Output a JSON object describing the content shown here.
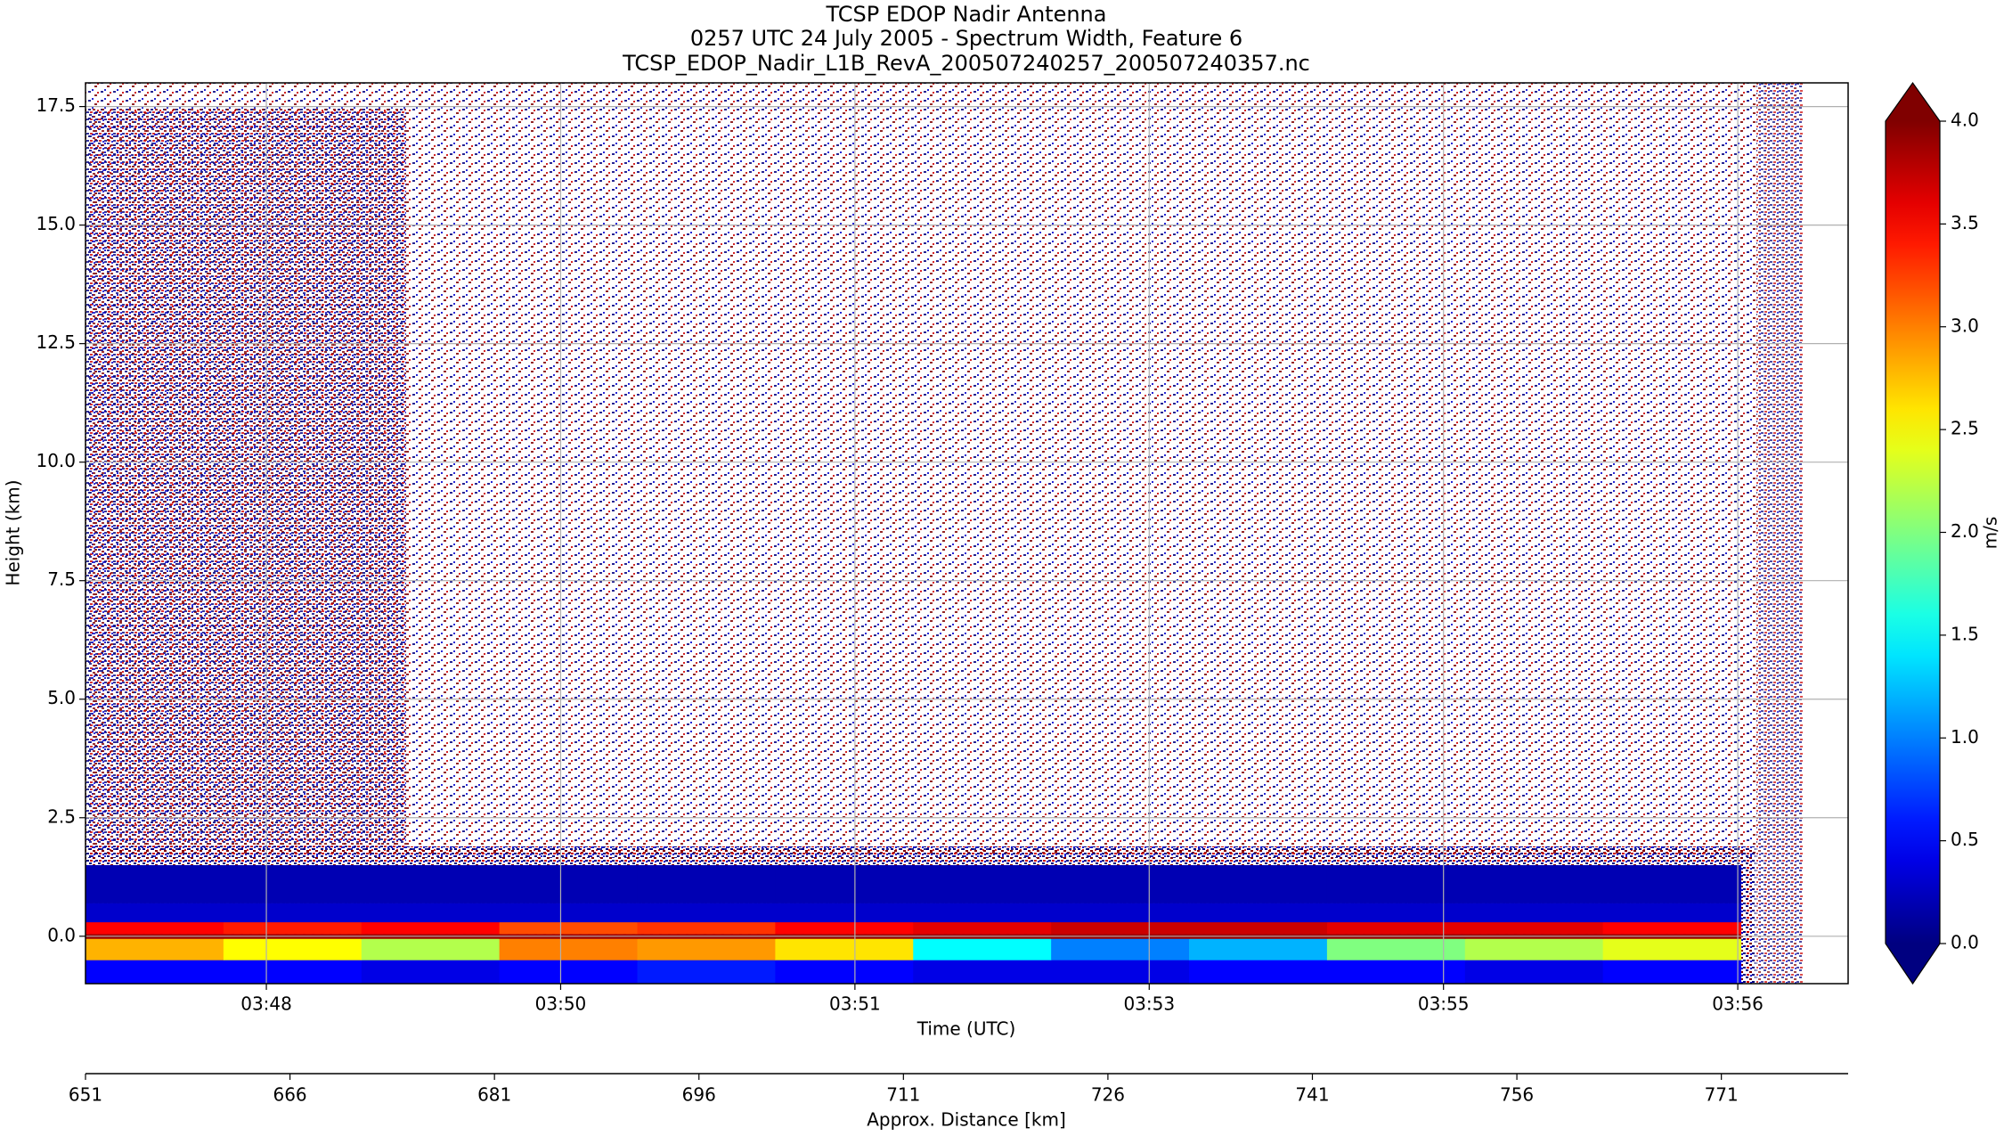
{
  "chart_data": {
    "type": "heatmap",
    "title": [
      "TCSP EDOP Nadir Antenna",
      "0257 UTC 24 July 2005 - Spectrum Width, Feature 6",
      "TCSP_EDOP_Nadir_L1B_RevA_200507240257_200507240357.nc"
    ],
    "xlabel": "Time (UTC)",
    "ylabel": "Height (km)",
    "xlim": [
      13621,
      14196
    ],
    "xticks": [
      {
        "value": 13680,
        "label": "03:48"
      },
      {
        "value": 13776,
        "label": "03:50"
      },
      {
        "value": 13872,
        "label": "03:51"
      },
      {
        "value": 13968,
        "label": "03:53"
      },
      {
        "value": 14064,
        "label": "03:55"
      },
      {
        "value": 14160,
        "label": "03:56"
      }
    ],
    "ylim": [
      -1,
      18
    ],
    "yticks": [
      {
        "value": 0,
        "label": "0.0"
      },
      {
        "value": 2.5,
        "label": "2.5"
      },
      {
        "value": 5,
        "label": "5.0"
      },
      {
        "value": 7.5,
        "label": "7.5"
      },
      {
        "value": 10,
        "label": "10.0"
      },
      {
        "value": 12.5,
        "label": "12.5"
      },
      {
        "value": 15,
        "label": "15.0"
      },
      {
        "value": 17.5,
        "label": "17.5"
      }
    ],
    "grid": true,
    "xbins": [
      13621,
      13666,
      13711,
      13756,
      13801,
      13846,
      13891,
      13936,
      13981,
      14026,
      14071,
      14116,
      14161
    ],
    "ybins": [
      -1,
      -0.5,
      -0.05,
      0.05,
      0.3,
      0.7,
      1.5
    ],
    "z": [
      [
        0.5,
        0.5,
        0.4,
        0.5,
        0.6,
        0.5,
        0.4,
        0.4,
        0.5,
        0.5,
        0.4,
        0.5
      ],
      [
        2.8,
        2.5,
        2.2,
        3.0,
        2.9,
        2.6,
        1.5,
        1.0,
        1.2,
        2.0,
        2.2,
        2.4
      ],
      [
        3.9,
        3.9,
        3.9,
        3.9,
        3.9,
        3.9,
        3.9,
        3.9,
        3.9,
        3.9,
        3.9,
        3.9
      ],
      [
        3.5,
        3.4,
        3.5,
        3.2,
        3.3,
        3.5,
        3.6,
        3.7,
        3.7,
        3.6,
        3.6,
        3.5
      ],
      [
        0.3,
        0.3,
        0.3,
        0.3,
        0.3,
        0.3,
        0.3,
        0.3,
        0.3,
        0.3,
        0.3,
        0.3
      ],
      [
        0.2,
        0.2,
        0.2,
        0.2,
        0.2,
        0.2,
        0.2,
        0.2,
        0.2,
        0.2,
        0.2,
        0.2
      ]
    ],
    "colormap": "jet",
    "colorbar": {
      "label": "m/s",
      "lim": [
        0,
        4
      ],
      "extend": "both",
      "ticks": [
        {
          "value": 0,
          "label": "0.0"
        },
        {
          "value": 0.5,
          "label": "0.5"
        },
        {
          "value": 1,
          "label": "1.0"
        },
        {
          "value": 1.5,
          "label": "1.5"
        },
        {
          "value": 2,
          "label": "2.0"
        },
        {
          "value": 2.5,
          "label": "2.5"
        },
        {
          "value": 3,
          "label": "3.0"
        },
        {
          "value": 3.5,
          "label": "3.5"
        },
        {
          "value": 4,
          "label": "4.0"
        }
      ]
    },
    "x2": {
      "label": "Approx. Distance [km]",
      "lim": [
        651,
        780.3
      ],
      "ticks": [
        651,
        666,
        681,
        696,
        711,
        726,
        741,
        756,
        771
      ]
    }
  }
}
